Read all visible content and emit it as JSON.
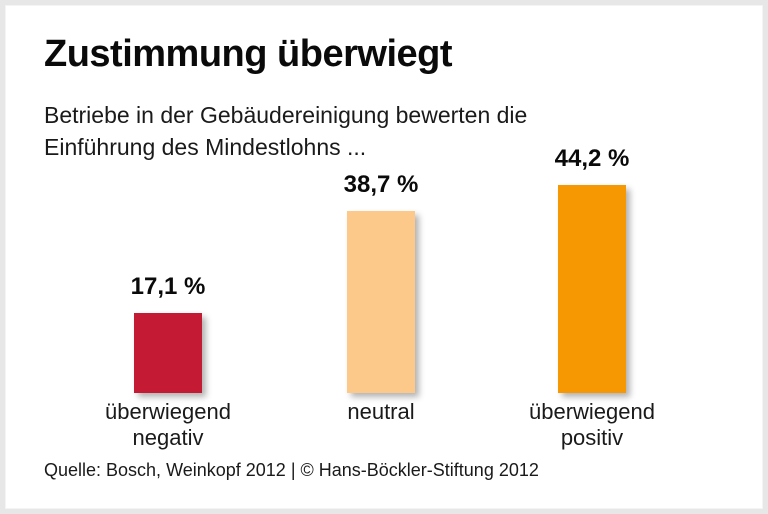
{
  "page": {
    "card_background": "#ffffff",
    "frame_color": "#e7e7e7",
    "text_color": "#1a1a1a"
  },
  "header": {
    "title": "Zustimmung überwiegt",
    "subtitle": "Betriebe in der Gebäudereinigung bewerten die\nEinführung des Mindestlohns ..."
  },
  "chart_data": {
    "type": "bar",
    "title": "Zustimmung überwiegt",
    "subtitle": "Betriebe in der Gebäudereinigung bewerten die Einführung des Mindestlohns ...",
    "categories": [
      "überwiegend\nnegativ",
      "neutral",
      "überwiegend\npositiv"
    ],
    "values": [
      17.1,
      38.7,
      44.2
    ],
    "value_labels": [
      "17,1 %",
      "38,7 %",
      "44,2 %"
    ],
    "bar_colors": [
      "#c51a33",
      "#fcc98a",
      "#f59802"
    ],
    "xlabel": "",
    "ylabel": "",
    "ylim": [
      0,
      47
    ],
    "grid": false,
    "legend": false
  },
  "footer": {
    "source": "Quelle: Bosch, Weinkopf 2012 | © Hans-Böckler-Stiftung 2012"
  }
}
